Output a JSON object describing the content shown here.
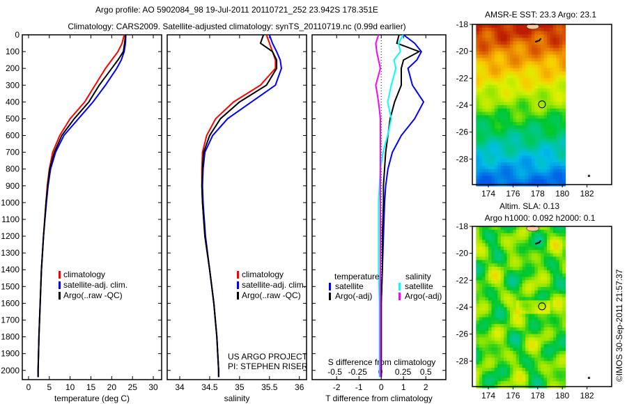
{
  "title": {
    "line1": "Argo profile: AO 5902084_98 19-Jul-2011 20110721_252 23.942S 178.351E",
    "line2": "Climatology: CARS2009. Satellite-adjusted climatology: synTS_20110719.nc (0.99d earlier)"
  },
  "credit": "©IMOS 30-Sep-2011 21:57:37",
  "colors": {
    "climatology": "#ff0000",
    "satellite": "#0000ff",
    "argo": "#000000",
    "s_satellite": "#00ffff",
    "s_argo": "#ff00ff"
  },
  "chart_data": [
    {
      "type": "line",
      "id": "temperature",
      "xlabel": "temperature (deg C)",
      "ylabel": "",
      "xlim": [
        -1.5,
        32
      ],
      "ylim": [
        2055,
        0
      ],
      "xticks": [
        "0",
        "5",
        "10",
        "15",
        "20",
        "25",
        "30"
      ],
      "yticks": [
        "0",
        "100",
        "200",
        "300",
        "400",
        "500",
        "600",
        "700",
        "800",
        "900",
        "1000",
        "1100",
        "1200",
        "1300",
        "1400",
        "1500",
        "1600",
        "1700",
        "1800",
        "1900",
        "2000"
      ],
      "depth": [
        0,
        50,
        100,
        150,
        200,
        300,
        400,
        500,
        600,
        700,
        800,
        900,
        1000,
        1200,
        1400,
        1600,
        1800,
        2000,
        2040
      ],
      "series": [
        {
          "name": "climatology",
          "values": [
            23.0,
            22.5,
            21.5,
            20.0,
            18.5,
            16.0,
            13.5,
            10.0,
            7.5,
            5.8,
            5.0,
            4.5,
            4.2,
            3.6,
            3.1,
            2.8,
            2.5,
            2.3,
            2.3
          ]
        },
        {
          "name": "satellite-adj. clim.",
          "values": [
            23.4,
            23.3,
            23.0,
            22.3,
            21.2,
            18.5,
            15.5,
            12.0,
            8.5,
            6.5,
            5.3,
            4.7,
            4.3,
            3.6,
            3.1,
            2.8,
            2.5,
            2.3,
            2.3
          ]
        },
        {
          "name": "Argo(..raw -QC)",
          "values": [
            23.3,
            23.1,
            22.8,
            21.5,
            20.0,
            17.0,
            14.5,
            11.0,
            8.0,
            6.2,
            5.1,
            4.6,
            4.2,
            3.6,
            3.1,
            2.8,
            2.5,
            2.3,
            2.3
          ]
        }
      ],
      "legend": [
        "climatology",
        "satellite-adj. clim.",
        "Argo(..raw -QC)"
      ]
    },
    {
      "type": "line",
      "id": "salinity",
      "xlabel": "salinity",
      "xlim": [
        33.79,
        36.12
      ],
      "ylim": [
        2055,
        0
      ],
      "xticks": [
        "34",
        "34.5",
        "35",
        "35.5",
        "36"
      ],
      "depth": [
        0,
        50,
        100,
        150,
        200,
        300,
        400,
        500,
        600,
        700,
        800,
        900,
        1000,
        1200,
        1400,
        1600,
        1800,
        2000,
        2040
      ],
      "series": [
        {
          "name": "climatology",
          "values": [
            35.45,
            35.5,
            35.55,
            35.6,
            35.6,
            35.35,
            34.9,
            34.6,
            34.45,
            34.38,
            34.37,
            34.37,
            34.38,
            34.42,
            34.5,
            34.57,
            34.62,
            34.65,
            34.65
          ]
        },
        {
          "name": "satellite-adj. clim.",
          "values": [
            35.5,
            35.55,
            35.62,
            35.68,
            35.7,
            35.6,
            35.2,
            34.8,
            34.55,
            34.42,
            34.39,
            34.38,
            34.39,
            34.43,
            34.5,
            34.57,
            34.62,
            34.65,
            34.65
          ]
        },
        {
          "name": "Argo(..raw -QC)",
          "values": [
            35.4,
            35.35,
            35.55,
            35.62,
            35.62,
            35.45,
            35.0,
            34.68,
            34.5,
            34.4,
            34.38,
            34.37,
            34.38,
            34.42,
            34.5,
            34.57,
            34.62,
            34.65,
            34.65
          ]
        }
      ],
      "legend": [
        "climatology",
        "satellite-adj. clim.",
        "Argo(..raw -QC)"
      ],
      "annotation": [
        "US ARGO PROJECT",
        "PI: STEPHEN RISER"
      ]
    },
    {
      "type": "line",
      "id": "difference",
      "xlabel": "T difference from climatology",
      "xlabel2": "S difference from climatology",
      "xlim": [
        -3.1,
        2.9
      ],
      "xlim2": [
        -0.75,
        0.72
      ],
      "ylim": [
        2055,
        0
      ],
      "xticks": [
        "-2",
        "-1",
        "0",
        "1",
        "2"
      ],
      "xticks2": [
        "-0.5",
        "-0.25",
        "0",
        "0.25",
        "0.5"
      ],
      "depth": [
        0,
        50,
        100,
        150,
        200,
        300,
        400,
        500,
        600,
        700,
        800,
        900,
        1000,
        1200,
        1400,
        1600,
        1800,
        2000,
        2040
      ],
      "series": [
        {
          "name": "temperature satellite",
          "axis": "T",
          "values": [
            1.0,
            1.5,
            1.8,
            1.6,
            1.2,
            1.4,
            1.9,
            1.5,
            0.9,
            0.5,
            0.3,
            0.2,
            0.15,
            0.1,
            0.05,
            0.0,
            0,
            0,
            0
          ]
        },
        {
          "name": "temperature Argo(-adj)",
          "axis": "T",
          "values": [
            0.8,
            0.7,
            1.7,
            1.0,
            0.9,
            0.9,
            0.6,
            0.4,
            0.3,
            0.2,
            0.15,
            0.1,
            0.1,
            0.05,
            0.05,
            0.0,
            0,
            0,
            0
          ]
        },
        {
          "name": "salinity satellite",
          "axis": "S",
          "values": [
            0.25,
            0.2,
            0.22,
            0.15,
            0.17,
            0.12,
            0.08,
            0.12,
            0.08,
            0.03,
            0.0,
            -0.01,
            -0.02,
            -0.02,
            -0.02,
            -0.01,
            -0.01,
            -0.01,
            -0.01
          ]
        },
        {
          "name": "salinity Argo(-adj)",
          "axis": "S",
          "values": [
            -0.02,
            -0.05,
            -0.04,
            -0.02,
            0.0,
            -0.05,
            -0.02,
            0,
            0,
            0,
            0,
            0,
            0,
            0,
            0,
            0,
            0,
            0,
            0
          ]
        }
      ],
      "legend": {
        "temperature_title": "temperature",
        "salinity_title": "salinity",
        "satellite": "satellite",
        "argo": "Argo(-adj)"
      }
    },
    {
      "type": "heatmap",
      "id": "sst-map",
      "title": "AMSR-E SST: 23.3 Argo: 23.1",
      "xlim": [
        172.7,
        184
      ],
      "ylim": [
        -29.9,
        -18
      ],
      "xticks": [
        "174",
        "176",
        "178",
        "180",
        "182"
      ],
      "yticks": [
        "-18",
        "-20",
        "-22",
        "-24",
        "-26",
        "-28"
      ],
      "marker": {
        "lon": 178.35,
        "lat": -23.94
      }
    },
    {
      "type": "heatmap",
      "id": "sla-map",
      "title": "Altim. SLA: 0.13",
      "subtitle": "Argo h1000: 0.092 h2000: 0.1",
      "xlim": [
        172.7,
        184
      ],
      "ylim": [
        -29.9,
        -18
      ],
      "xticks": [
        "174",
        "176",
        "178",
        "180",
        "182"
      ],
      "yticks": [
        "-18",
        "-20",
        "-22",
        "-24",
        "-26",
        "-28"
      ],
      "marker": {
        "lon": 178.35,
        "lat": -23.94
      }
    }
  ]
}
